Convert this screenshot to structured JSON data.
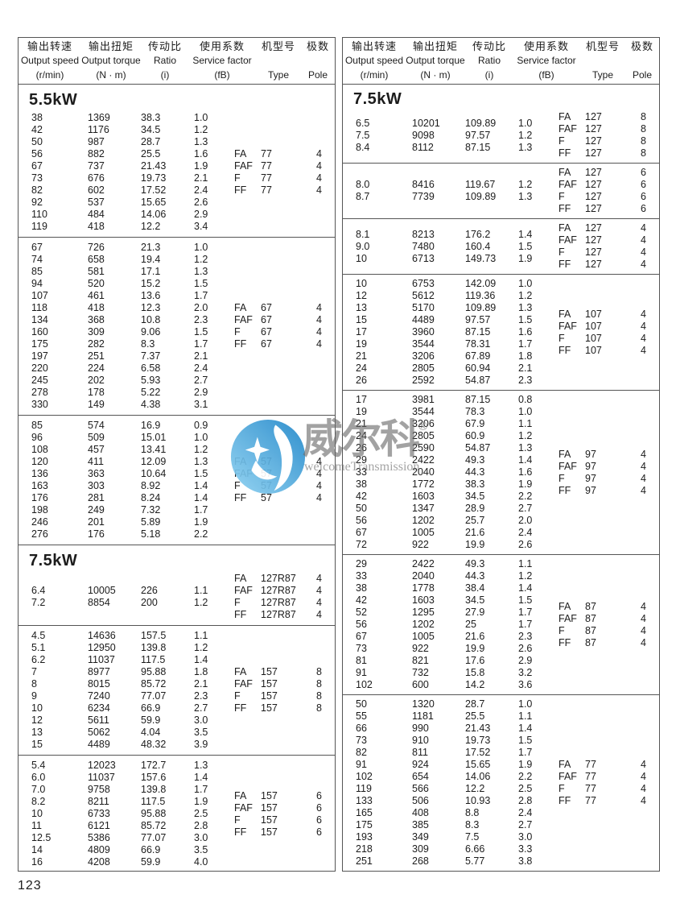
{
  "page_number": "123",
  "watermark": {
    "brand_zh": "威尔科",
    "reg_mark": "®",
    "brand_en": "welcomeTransmission",
    "logo_color_dark": "#1f86c9",
    "logo_color_light": "#8ed2f2"
  },
  "header_columns": [
    {
      "key": "output-speed",
      "zh": "输出转速",
      "en": "Output speed",
      "unit": "(r/min)"
    },
    {
      "key": "output-torque",
      "zh": "输出扭矩",
      "en": "Output torque",
      "unit": "(N · m)"
    },
    {
      "key": "ratio",
      "zh": "传动比",
      "en": "Ratio",
      "unit": "(i)"
    },
    {
      "key": "service-factor",
      "zh": "使用系数",
      "en": "Service factor",
      "unit": "(fB)"
    },
    {
      "key": "type",
      "zh": "机型号",
      "en": "",
      "unit": "Type"
    },
    {
      "key": "pole",
      "zh": "极数",
      "en": "",
      "unit": "Pole"
    }
  ],
  "type_prefixes": [
    "FA",
    "FAF",
    "F",
    "FF"
  ],
  "columns": [
    {
      "side": "left",
      "sections": [
        {
          "power": "5.5kW",
          "type_code": "77",
          "pole": "4",
          "rows": [
            [
              "38",
              "1369",
              "38.3",
              "1.0"
            ],
            [
              "42",
              "1176",
              "34.5",
              "1.2"
            ],
            [
              "50",
              "987",
              "28.7",
              "1.3"
            ],
            [
              "56",
              "882",
              "25.5",
              "1.6"
            ],
            [
              "67",
              "737",
              "21.43",
              "1.9"
            ],
            [
              "73",
              "676",
              "19.73",
              "2.1"
            ],
            [
              "82",
              "602",
              "17.52",
              "2.4"
            ],
            [
              "92",
              "537",
              "15.65",
              "2.6"
            ],
            [
              "110",
              "484",
              "14.06",
              "2.9"
            ],
            [
              "119",
              "418",
              "12.2",
              "3.4"
            ]
          ]
        },
        {
          "power": null,
          "type_code": "67",
          "pole": "4",
          "rows": [
            [
              "67",
              "726",
              "21.3",
              "1.0"
            ],
            [
              "74",
              "658",
              "19.4",
              "1.2"
            ],
            [
              "85",
              "581",
              "17.1",
              "1.3"
            ],
            [
              "94",
              "520",
              "15.2",
              "1.5"
            ],
            [
              "107",
              "461",
              "13.6",
              "1.7"
            ],
            [
              "118",
              "418",
              "12.3",
              "2.0"
            ],
            [
              "134",
              "368",
              "10.8",
              "2.3"
            ],
            [
              "160",
              "309",
              "9.06",
              "1.5"
            ],
            [
              "175",
              "282",
              "8.3",
              "1.7"
            ],
            [
              "197",
              "251",
              "7.37",
              "2.1"
            ],
            [
              "220",
              "224",
              "6.58",
              "2.4"
            ],
            [
              "245",
              "202",
              "5.93",
              "2.7"
            ],
            [
              "278",
              "178",
              "5.22",
              "2.9"
            ],
            [
              "330",
              "149",
              "4.38",
              "3.1"
            ]
          ]
        },
        {
          "power": null,
          "type_code": "57",
          "pole": "4",
          "rows": [
            [
              "85",
              "574",
              "16.9",
              "0.9"
            ],
            [
              "96",
              "509",
              "15.01",
              "1.0"
            ],
            [
              "108",
              "457",
              "13.41",
              "1.2"
            ],
            [
              "120",
              "411",
              "12.09",
              "1.3"
            ],
            [
              "136",
              "363",
              "10.64",
              "1.5"
            ],
            [
              "163",
              "303",
              "8.92",
              "1.4"
            ],
            [
              "176",
              "281",
              "8.24",
              "1.4"
            ],
            [
              "198",
              "249",
              "7.32",
              "1.7"
            ],
            [
              "246",
              "201",
              "5.89",
              "1.9"
            ],
            [
              "276",
              "176",
              "5.18",
              "2.2"
            ]
          ]
        },
        {
          "power": "7.5kW",
          "type_code": "127R87",
          "pole": "4",
          "rows": [
            [
              "6.4",
              "10005",
              "226",
              "1.1"
            ],
            [
              "7.2",
              "8854",
              "200",
              "1.2"
            ]
          ]
        },
        {
          "power": null,
          "type_code": "157",
          "pole": "8",
          "rows": [
            [
              "4.5",
              "14636",
              "157.5",
              "1.1"
            ],
            [
              "5.1",
              "12950",
              "139.8",
              "1.2"
            ],
            [
              "6.2",
              "11037",
              "117.5",
              "1.4"
            ],
            [
              "7",
              "8977",
              "95.88",
              "1.8"
            ],
            [
              "8",
              "8015",
              "85.72",
              "2.1"
            ],
            [
              "9",
              "7240",
              "77.07",
              "2.3"
            ],
            [
              "10",
              "6234",
              "66.9",
              "2.7"
            ],
            [
              "12",
              "5611",
              "59.9",
              "3.0"
            ],
            [
              "13",
              "5062",
              "4.04",
              "3.5"
            ],
            [
              "15",
              "4489",
              "48.32",
              "3.9"
            ]
          ]
        },
        {
          "power": null,
          "type_code": "157",
          "pole": "6",
          "rows": [
            [
              "5.4",
              "12023",
              "172.7",
              "1.3"
            ],
            [
              "6.0",
              "11037",
              "157.6",
              "1.4"
            ],
            [
              "7.0",
              "9758",
              "139.8",
              "1.7"
            ],
            [
              "8.2",
              "8211",
              "117.5",
              "1.9"
            ],
            [
              "10",
              "6733",
              "95.88",
              "2.5"
            ],
            [
              "11",
              "6121",
              "85.72",
              "2.8"
            ],
            [
              "12.5",
              "5386",
              "77.07",
              "3.0"
            ],
            [
              "14",
              "4809",
              "66.9",
              "3.5"
            ],
            [
              "16",
              "4208",
              "59.9",
              "4.0"
            ]
          ]
        }
      ]
    },
    {
      "side": "right",
      "sections": [
        {
          "power": "7.5kW",
          "type_code": "127",
          "pole": "8",
          "rows": [
            [
              "6.5",
              "10201",
              "109.89",
              "1.0"
            ],
            [
              "7.5",
              "9098",
              "97.57",
              "1.2"
            ],
            [
              "8.4",
              "8112",
              "87.15",
              "1.3"
            ]
          ]
        },
        {
          "power": null,
          "type_code": "127",
          "pole": "6",
          "rows": [
            [
              "8.0",
              "8416",
              "119.67",
              "1.2"
            ],
            [
              "8.7",
              "7739",
              "109.89",
              "1.3"
            ]
          ]
        },
        {
          "power": null,
          "type_code": "127",
          "pole": "4",
          "rows": [
            [
              "8.1",
              "8213",
              "176.2",
              "1.4"
            ],
            [
              "9.0",
              "7480",
              "160.4",
              "1.5"
            ],
            [
              "10",
              "6713",
              "149.73",
              "1.9"
            ]
          ]
        },
        {
          "power": null,
          "type_code": "107",
          "pole": "4",
          "rows": [
            [
              "10",
              "6753",
              "142.09",
              "1.0"
            ],
            [
              "12",
              "5612",
              "119.36",
              "1.2"
            ],
            [
              "13",
              "5170",
              "109.89",
              "1.3"
            ],
            [
              "15",
              "4489",
              "97.57",
              "1.5"
            ],
            [
              "17",
              "3960",
              "87.15",
              "1.6"
            ],
            [
              "19",
              "3544",
              "78.31",
              "1.7"
            ],
            [
              "21",
              "3206",
              "67.89",
              "1.8"
            ],
            [
              "24",
              "2805",
              "60.94",
              "2.1"
            ],
            [
              "26",
              "2592",
              "54.87",
              "2.3"
            ]
          ]
        },
        {
          "power": null,
          "type_code": "97",
          "pole": "4",
          "rows": [
            [
              "17",
              "3981",
              "87.15",
              "0.8"
            ],
            [
              "19",
              "3544",
              "78.3",
              "1.0"
            ],
            [
              "21",
              "3206",
              "67.9",
              "1.1"
            ],
            [
              "24",
              "2805",
              "60.9",
              "1.2"
            ],
            [
              "26",
              "2590",
              "54.87",
              "1.3"
            ],
            [
              "29",
              "2422",
              "49.3",
              "1.4"
            ],
            [
              "33",
              "2040",
              "44.3",
              "1.6"
            ],
            [
              "38",
              "1772",
              "38.3",
              "1.9"
            ],
            [
              "42",
              "1603",
              "34.5",
              "2.2"
            ],
            [
              "50",
              "1347",
              "28.9",
              "2.7"
            ],
            [
              "56",
              "1202",
              "25.7",
              "2.0"
            ],
            [
              "67",
              "1005",
              "21.6",
              "2.4"
            ],
            [
              "72",
              "922",
              "19.9",
              "2.6"
            ]
          ]
        },
        {
          "power": null,
          "type_code": "87",
          "pole": "4",
          "rows": [
            [
              "29",
              "2422",
              "49.3",
              "1.1"
            ],
            [
              "33",
              "2040",
              "44.3",
              "1.2"
            ],
            [
              "38",
              "1778",
              "38.4",
              "1.4"
            ],
            [
              "42",
              "1603",
              "34.5",
              "1.5"
            ],
            [
              "52",
              "1295",
              "27.9",
              "1.7"
            ],
            [
              "56",
              "1202",
              "25",
              "1.7"
            ],
            [
              "67",
              "1005",
              "21.6",
              "2.3"
            ],
            [
              "73",
              "922",
              "19.9",
              "2.6"
            ],
            [
              "81",
              "821",
              "17.6",
              "2.9"
            ],
            [
              "91",
              "732",
              "15.8",
              "3.2"
            ],
            [
              "102",
              "600",
              "14.2",
              "3.6"
            ]
          ]
        },
        {
          "power": null,
          "type_code": "77",
          "pole": "4",
          "rows": [
            [
              "50",
              "1320",
              "28.7",
              "1.0"
            ],
            [
              "55",
              "1181",
              "25.5",
              "1.1"
            ],
            [
              "66",
              "990",
              "21.43",
              "1.4"
            ],
            [
              "73",
              "910",
              "19.73",
              "1.5"
            ],
            [
              "82",
              "811",
              "17.52",
              "1.7"
            ],
            [
              "91",
              "924",
              "15.65",
              "1.9"
            ],
            [
              "102",
              "654",
              "14.06",
              "2.2"
            ],
            [
              "119",
              "566",
              "12.2",
              "2.5"
            ],
            [
              "133",
              "506",
              "10.93",
              "2.8"
            ],
            [
              "165",
              "408",
              "8.8",
              "2.4"
            ],
            [
              "175",
              "385",
              "8.3",
              "2.7"
            ],
            [
              "193",
              "349",
              "7.5",
              "3.0"
            ],
            [
              "218",
              "309",
              "6.66",
              "3.3"
            ],
            [
              "251",
              "268",
              "5.77",
              "3.8"
            ]
          ]
        }
      ]
    }
  ]
}
